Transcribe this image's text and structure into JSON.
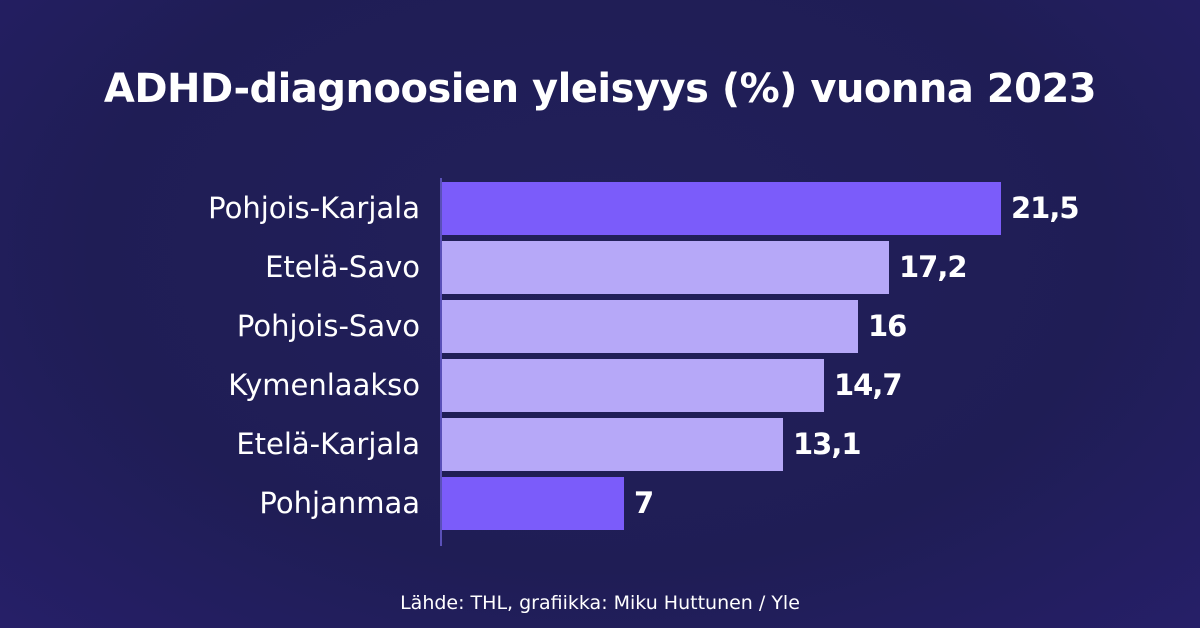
{
  "title": "ADHD-diagnoosien yleisyys (%) vuonna 2023",
  "source": "Lähde: THL, grafiikka: Miku Huttunen / Yle",
  "colors": {
    "background": "#201e58",
    "highlight_bar": "#7b5cfa",
    "default_bar": "#b6a8f8",
    "text": "#ffffff"
  },
  "chart_data": {
    "type": "bar",
    "orientation": "horizontal",
    "title": "ADHD-diagnoosien yleisyys (%) vuonna 2023",
    "xlabel": "",
    "ylabel": "",
    "categories": [
      "Pohjois-Karjala",
      "Etelä-Savo",
      "Pohjois-Savo",
      "Kymenlaakso",
      "Etelä-Karjala",
      "Pohjanmaa"
    ],
    "values": [
      21.5,
      17.2,
      16,
      14.7,
      13.1,
      7
    ],
    "value_labels": [
      "21,5",
      "17,2",
      "16",
      "14,7",
      "13,1",
      "7"
    ],
    "highlighted": [
      "Pohjois-Karjala",
      "Pohjanmaa"
    ],
    "grid": false,
    "legend": null,
    "source": "Lähde: THL, grafiikka: Miku Huttunen / Yle"
  },
  "rows": [
    {
      "label": "Pohjois-Karjala",
      "value": 21.5,
      "value_label": "21,5",
      "highlight": true
    },
    {
      "label": "Etelä-Savo",
      "value": 17.2,
      "value_label": "17,2",
      "highlight": false
    },
    {
      "label": "Pohjois-Savo",
      "value": 16,
      "value_label": "16",
      "highlight": false
    },
    {
      "label": "Kymenlaakso",
      "value": 14.7,
      "value_label": "14,7",
      "highlight": false
    },
    {
      "label": "Etelä-Karjala",
      "value": 13.1,
      "value_label": "13,1",
      "highlight": false
    },
    {
      "label": "Pohjanmaa",
      "value": 7,
      "value_label": "7",
      "highlight": true
    }
  ]
}
